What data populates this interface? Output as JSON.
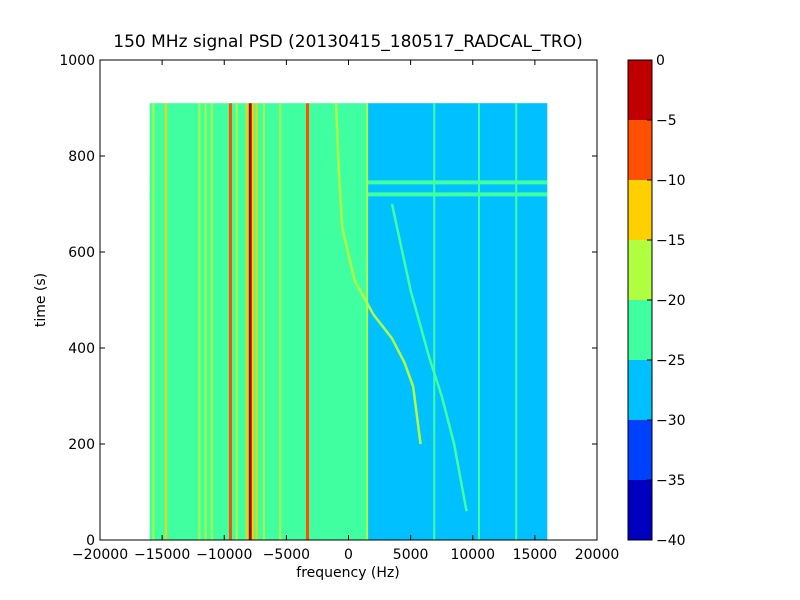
{
  "chart_data": {
    "type": "heatmap",
    "title": "150 MHz signal PSD (20130415_180517_RADCAL_TRO)",
    "xlabel": "frequency (Hz)",
    "ylabel": "time (s)",
    "xlim": [
      -20000,
      20000
    ],
    "ylim": [
      0,
      1000
    ],
    "xticks": [
      -20000,
      -15000,
      -10000,
      -5000,
      0,
      5000,
      10000,
      15000,
      20000
    ],
    "xtick_labels": [
      "−20000",
      "−15000",
      "−10000",
      "−5000",
      "0",
      "5000",
      "10000",
      "15000",
      "20000"
    ],
    "yticks": [
      0,
      200,
      400,
      600,
      800,
      1000
    ],
    "ytick_labels": [
      "0",
      "200",
      "400",
      "600",
      "800",
      "1000"
    ],
    "data_extent": {
      "x": [
        -16000,
        16000
      ],
      "y": [
        0,
        910
      ]
    },
    "colorbar": {
      "levels": [
        -40,
        -35,
        -30,
        -25,
        -20,
        -15,
        -10,
        -5,
        0
      ],
      "tick_labels": [
        "−40",
        "−35",
        "−30",
        "−25",
        "−20",
        "−15",
        "−10",
        "−5",
        "0"
      ],
      "colors": [
        "#0000c0",
        "#0040ff",
        "#00c0ff",
        "#40ffa0",
        "#b0ff40",
        "#ffd000",
        "#ff5000",
        "#c00000"
      ]
    },
    "background_regions": [
      {
        "x": [
          -16000,
          1500
        ],
        "level": -22.5
      },
      {
        "x": [
          1500,
          16000
        ],
        "level": -27.5
      }
    ],
    "vertical_lines": [
      {
        "x": -15700,
        "level": -17.5
      },
      {
        "x": -14700,
        "level": -12.5
      },
      {
        "x": -12000,
        "level": -17.5
      },
      {
        "x": -11500,
        "level": -17.5
      },
      {
        "x": -11000,
        "level": -17.5
      },
      {
        "x": -9500,
        "level": -7.5
      },
      {
        "x": -9000,
        "level": -17.5
      },
      {
        "x": -8200,
        "level": -12.5
      },
      {
        "x": -7900,
        "level": -2.5
      },
      {
        "x": -7700,
        "level": -12.5
      },
      {
        "x": -7400,
        "level": -12.5
      },
      {
        "x": -6800,
        "level": -17.5
      },
      {
        "x": -5500,
        "level": -17.5
      },
      {
        "x": -3300,
        "level": -7.5
      },
      {
        "x": 1500,
        "level": -17.5
      },
      {
        "x": 6900,
        "level": -22.5
      },
      {
        "x": 10500,
        "level": -22.5
      },
      {
        "x": 13500,
        "level": -22.5
      }
    ],
    "horizontal_lines": [
      {
        "y": 720,
        "level": -22.5
      },
      {
        "y": 745,
        "level": -22.5
      }
    ],
    "drift_tracks": [
      {
        "name": "",
        "level": -17.5,
        "x": [
          -1000,
          -800,
          -500,
          500,
          2000,
          3500,
          4500,
          5200,
          5800
        ],
        "y": [
          910,
          780,
          650,
          540,
          470,
          420,
          370,
          320,
          200
        ]
      },
      {
        "name": "",
        "level": -22.5,
        "x": [
          3500,
          5000,
          6500,
          7500,
          8500,
          9500
        ],
        "y": [
          700,
          520,
          380,
          300,
          200,
          60
        ]
      }
    ]
  }
}
